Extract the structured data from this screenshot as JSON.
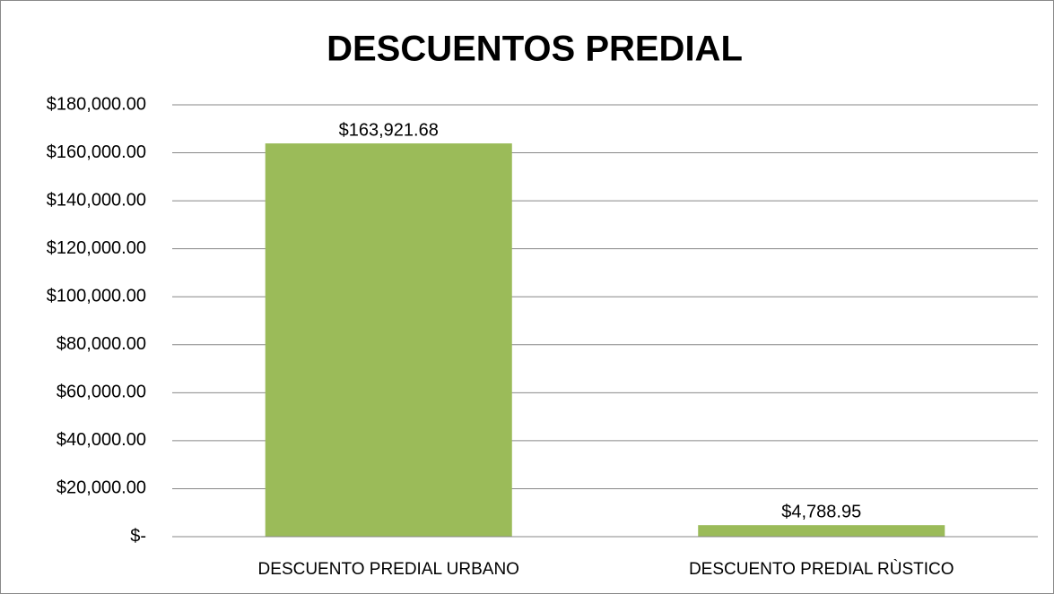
{
  "chart_data": {
    "type": "bar",
    "title": "DESCUENTOS PREDIAL",
    "categories": [
      "DESCUENTO PREDIAL URBANO",
      "DESCUENTO PREDIAL RÙSTICO"
    ],
    "values": [
      163921.68,
      4788.95
    ],
    "value_labels": [
      "$163,921.68",
      "$4,788.95"
    ],
    "color": "#9bbb59",
    "ylim": [
      0,
      180000
    ],
    "yticks": [
      {
        "value": 0,
        "label": "$-"
      },
      {
        "value": 20000,
        "label": "$20,000.00"
      },
      {
        "value": 40000,
        "label": "$40,000.00"
      },
      {
        "value": 60000,
        "label": "$60,000.00"
      },
      {
        "value": 80000,
        "label": "$80,000.00"
      },
      {
        "value": 100000,
        "label": "$100,000.00"
      },
      {
        "value": 120000,
        "label": "$120,000.00"
      },
      {
        "value": 140000,
        "label": "$140,000.00"
      },
      {
        "value": 160000,
        "label": "$160,000.00"
      },
      {
        "value": 180000,
        "label": "$180,000.00"
      }
    ],
    "grid": true
  }
}
